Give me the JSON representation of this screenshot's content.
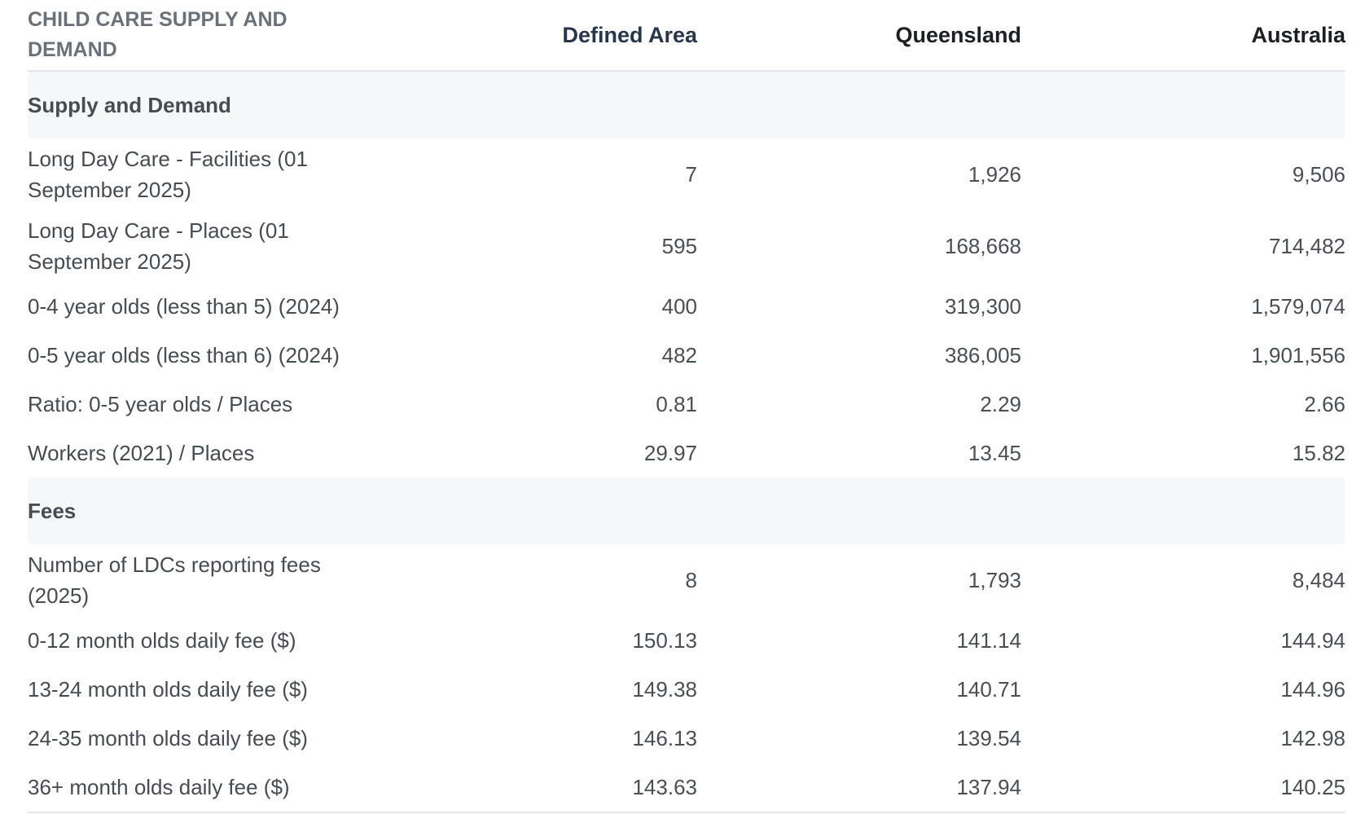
{
  "table": {
    "headers": {
      "label": "CHILD CARE SUPPLY AND DEMAND",
      "defined_area": "Defined Area",
      "queensland": "Queensland",
      "australia": "Australia"
    },
    "sections": [
      {
        "title": "Supply and Demand",
        "rows": [
          {
            "label": "Long Day Care - Facilities (01 September 2025)",
            "defined_area": "7",
            "queensland": "1,926",
            "australia": "9,506"
          },
          {
            "label": "Long Day Care - Places (01 September 2025)",
            "defined_area": "595",
            "queensland": "168,668",
            "australia": "714,482"
          },
          {
            "label": "0-4 year olds (less than 5) (2024)",
            "defined_area": "400",
            "queensland": "319,300",
            "australia": "1,579,074"
          },
          {
            "label": "0-5 year olds (less than 6) (2024)",
            "defined_area": "482",
            "queensland": "386,005",
            "australia": "1,901,556"
          },
          {
            "label": "Ratio: 0-5 year olds / Places",
            "defined_area": "0.81",
            "queensland": "2.29",
            "australia": "2.66"
          },
          {
            "label": "Workers (2021) / Places",
            "defined_area": "29.97",
            "queensland": "13.45",
            "australia": "15.82"
          }
        ]
      },
      {
        "title": "Fees",
        "rows": [
          {
            "label": "Number of LDCs reporting fees (2025)",
            "defined_area": "8",
            "queensland": "1,793",
            "australia": "8,484"
          },
          {
            "label": "0-12 month olds daily fee ($)",
            "defined_area": "150.13",
            "queensland": "141.14",
            "australia": "144.94"
          },
          {
            "label": "13-24 month olds daily fee ($)",
            "defined_area": "149.38",
            "queensland": "140.71",
            "australia": "144.96"
          },
          {
            "label": "24-35 month olds daily fee ($)",
            "defined_area": "146.13",
            "queensland": "139.54",
            "australia": "142.98"
          },
          {
            "label": "36+ month olds daily fee ($)",
            "defined_area": "143.63",
            "queensland": "137.94",
            "australia": "140.25"
          }
        ]
      }
    ]
  }
}
